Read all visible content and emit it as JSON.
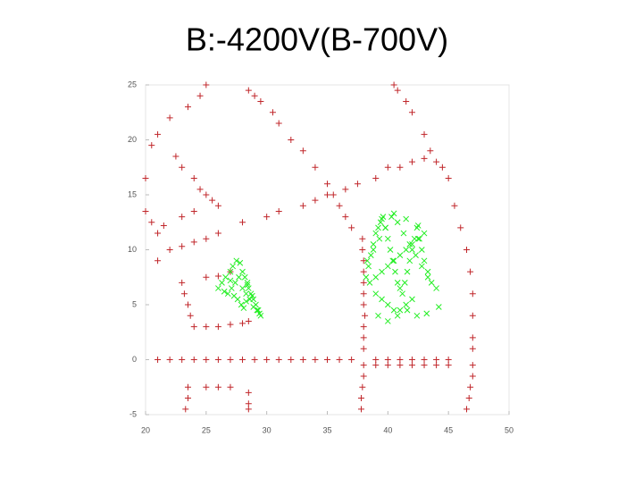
{
  "chart_data": {
    "type": "scatter",
    "title": "B:-4200V(B-700V)",
    "xlim": [
      20,
      50
    ],
    "xticks": [
      20,
      25,
      30,
      35,
      40,
      45,
      50
    ],
    "ylim": [
      -5,
      25
    ],
    "yticks": [
      -5,
      0,
      5,
      10,
      15,
      20,
      25
    ],
    "series": [
      {
        "color": "#c0262a",
        "marker": "+",
        "x": [
          21,
          22,
          23,
          24,
          25,
          26,
          27,
          28,
          29,
          30,
          31,
          32,
          33,
          34,
          35,
          36,
          37,
          39,
          40,
          41,
          42,
          43,
          44,
          45,
          39,
          40,
          41,
          42,
          43,
          44,
          45,
          37.9,
          37.9,
          38,
          38,
          38,
          38,
          38,
          38.1,
          38,
          38,
          38,
          38,
          38,
          37.9,
          37.8,
          37.8,
          40.5,
          40.8,
          41.5,
          42,
          43,
          43.5,
          44,
          44.5,
          45,
          45.5,
          46,
          46.5,
          46.8,
          47,
          47,
          47,
          47,
          47,
          47,
          46.8,
          46.7,
          46.5,
          28.5,
          29,
          29.5,
          30.5,
          31,
          32,
          33,
          34,
          35,
          35.5,
          36,
          36.5,
          37,
          21,
          22,
          23,
          24,
          25,
          26,
          28,
          30,
          31,
          33,
          34,
          35,
          36.5,
          37.5,
          39,
          40,
          41,
          42,
          43,
          20,
          20.5,
          21,
          22,
          23.5,
          24.5,
          25,
          22.5,
          23,
          24,
          24.5,
          25,
          25.5,
          26,
          20,
          20.5,
          21,
          21.5,
          23,
          24,
          23,
          23.2,
          23.5,
          23.7,
          24,
          25,
          26,
          27,
          28,
          28.5,
          25,
          26,
          27,
          23.5,
          23.5,
          23.3,
          25,
          26,
          27,
          28.5,
          28.5,
          28.5
        ],
        "values": [
          0,
          0,
          0,
          0,
          0,
          0,
          0,
          0,
          0,
          0,
          0,
          0,
          0,
          0,
          0,
          0,
          0,
          0,
          0,
          0,
          0,
          0,
          0,
          0,
          -0.5,
          -0.5,
          -0.5,
          -0.5,
          -0.5,
          -0.5,
          -0.5,
          11,
          10,
          9,
          8,
          7,
          6,
          5,
          4,
          3,
          2,
          1,
          -0.5,
          -1.5,
          -2.5,
          -3.5,
          -4.5,
          25,
          24.5,
          23.5,
          22.5,
          20.5,
          19,
          18,
          17.5,
          16.5,
          14,
          12,
          10,
          8,
          6,
          4,
          2,
          1,
          -0.5,
          -1.5,
          -2.5,
          -3.5,
          -4.5,
          24.5,
          24,
          23.5,
          22.5,
          21.5,
          20,
          19,
          17.5,
          16,
          15,
          14,
          13,
          12,
          9,
          10,
          10.3,
          10.7,
          11,
          11.5,
          12.5,
          13,
          13.5,
          14,
          14.5,
          15,
          15.5,
          16,
          16.5,
          17.5,
          17.5,
          18,
          18.3,
          16.5,
          19.5,
          20.5,
          22,
          23,
          24,
          25,
          18.5,
          17.5,
          16.5,
          15.5,
          15,
          14.5,
          14,
          13.5,
          12.5,
          11.5,
          12.2,
          13,
          13.5,
          7,
          6,
          5,
          4,
          3,
          3,
          3,
          3.2,
          3.3,
          3.5,
          7.5,
          7.6,
          8,
          -2.5,
          -3.5,
          -4.5,
          -2.5,
          -2.5,
          -2.5,
          -3,
          -4,
          -4.5
        ]
      },
      {
        "color": "#22ee22",
        "marker": "x",
        "x": [
          26,
          26.3,
          26.6,
          27,
          27.2,
          27.5,
          27.8,
          28,
          28.2,
          28.4,
          28.5,
          28.7,
          28.9,
          29.1,
          29.3,
          29.5,
          26.8,
          27.1,
          27.4,
          27.7,
          28,
          28.3,
          28.6,
          28.9,
          29.2,
          27.6,
          27.9,
          28.1,
          28.3,
          27.3,
          26.5,
          27,
          28.8,
          29.4,
          28.4,
          38.2,
          38.4,
          38.6,
          38.8,
          39,
          39.2,
          39.4,
          39.6,
          39.8,
          40,
          40.2,
          40.4,
          40.6,
          40.8,
          41,
          41.2,
          41.4,
          41.6,
          41.8,
          42,
          42.2,
          42.4,
          42.6,
          42.8,
          43,
          43.3,
          43.6,
          44,
          38.5,
          39,
          39.5,
          40,
          40.5,
          41,
          41.5,
          42,
          42.5,
          43,
          38.3,
          38.8,
          39.3,
          39.8,
          40.3,
          40.8,
          41.3,
          41.8,
          42.3,
          42.8,
          43.3,
          39,
          39.5,
          40,
          40.5,
          41,
          41.5,
          42,
          39.2,
          40,
          40.8,
          41.6,
          42.4,
          43.2,
          44.2,
          39.5,
          40.5,
          41.5,
          42.5
        ],
        "values": [
          6.5,
          7,
          7.5,
          8,
          8.5,
          9,
          8.8,
          8,
          7.5,
          7,
          6.5,
          6,
          5.5,
          5,
          4.5,
          4,
          6,
          6.5,
          7,
          7.5,
          6.5,
          6,
          5.5,
          4.8,
          4.5,
          5.5,
          5,
          4.7,
          5.3,
          5.8,
          6.2,
          7.2,
          5.8,
          4.2,
          6.8,
          7.5,
          8.5,
          9.5,
          10.5,
          11.5,
          12,
          12.5,
          13,
          12,
          11,
          10,
          9,
          8,
          7,
          6.5,
          6,
          7,
          8,
          9,
          10,
          11,
          12,
          11,
          10,
          9,
          8,
          7,
          6.5,
          7,
          7.5,
          8,
          8.5,
          9,
          9.5,
          10,
          10.5,
          11,
          11.5,
          9,
          10,
          11,
          12,
          13,
          12.5,
          11.5,
          10.5,
          9.5,
          8.5,
          7.5,
          6,
          5.5,
          5,
          4.5,
          4.5,
          5,
          5.5,
          4,
          3.5,
          4,
          4.5,
          4,
          4.2,
          4.8,
          12.8,
          13.3,
          12.8,
          12.2
        ]
      }
    ]
  }
}
